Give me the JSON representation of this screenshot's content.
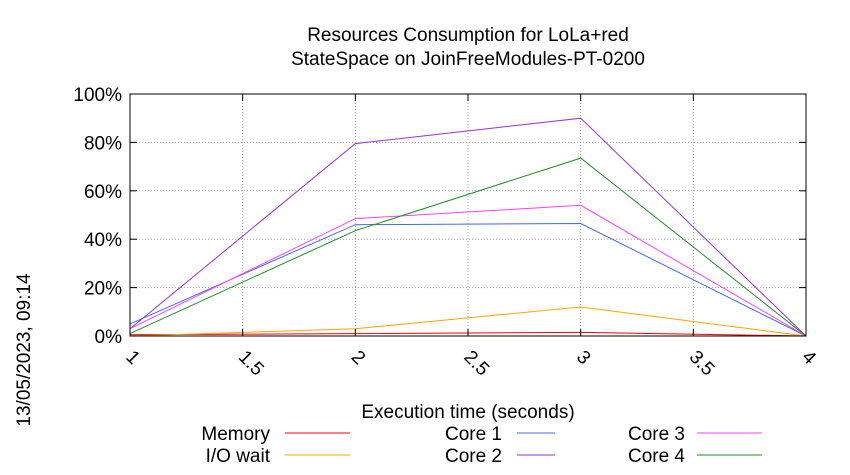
{
  "chart_data": {
    "type": "line",
    "title": "Resources Consumption for LoLa+red",
    "subtitle": "StateSpace on JoinFreeModules-PT-0200",
    "xlabel": "Execution time (seconds)",
    "ylabel": "",
    "timestamp": "13/05/2023, 09:14",
    "xlim": [
      1,
      4
    ],
    "ylim": [
      0,
      100
    ],
    "x_ticks": [
      {
        "value": 1,
        "label": "1"
      },
      {
        "value": 1.5,
        "label": "1.5"
      },
      {
        "value": 2,
        "label": "2"
      },
      {
        "value": 2.5,
        "label": "2.5"
      },
      {
        "value": 3,
        "label": "3"
      },
      {
        "value": 3.5,
        "label": "3.5"
      },
      {
        "value": 4,
        "label": "4"
      }
    ],
    "y_ticks": [
      {
        "value": 0,
        "label": "0%"
      },
      {
        "value": 20,
        "label": "20%"
      },
      {
        "value": 40,
        "label": "40%"
      },
      {
        "value": 60,
        "label": "60%"
      },
      {
        "value": 80,
        "label": "80%"
      },
      {
        "value": 100,
        "label": "100%"
      }
    ],
    "grid": true,
    "legend_position": "bottom",
    "series": [
      {
        "name": "Memory",
        "color": "#ff0000",
        "x": [
          1,
          2,
          3,
          4
        ],
        "values": [
          0.5,
          1,
          1.5,
          0
        ]
      },
      {
        "name": "I/O wait",
        "color": "#ffa500",
        "x": [
          1,
          2,
          3,
          4
        ],
        "values": [
          0,
          3,
          12,
          0
        ]
      },
      {
        "name": "Core 1",
        "color": "#4169e1",
        "x": [
          1,
          2,
          3,
          4
        ],
        "values": [
          5,
          46,
          46.5,
          0
        ]
      },
      {
        "name": "Core 2",
        "color": "#9a32cd",
        "x": [
          1,
          2,
          3,
          4
        ],
        "values": [
          3,
          79.5,
          90,
          0
        ]
      },
      {
        "name": "Core 3",
        "color": "#ff40ff",
        "x": [
          1,
          2,
          3,
          4
        ],
        "values": [
          3,
          48.5,
          54,
          0
        ]
      },
      {
        "name": "Core 4",
        "color": "#228b22",
        "x": [
          1,
          2,
          3,
          4
        ],
        "values": [
          1,
          43.5,
          73.5,
          0
        ]
      }
    ]
  }
}
